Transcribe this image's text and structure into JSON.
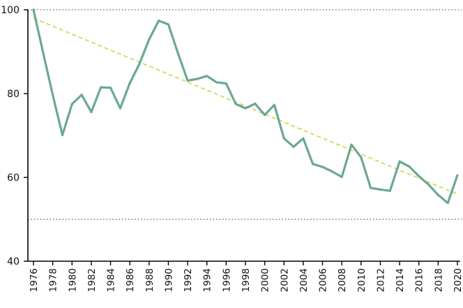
{
  "chart_data": {
    "type": "line",
    "title": "",
    "xlabel": "",
    "ylabel": "",
    "xlim": [
      1976,
      2020
    ],
    "ylim": [
      40,
      100
    ],
    "y_ticks": [
      40,
      60,
      80,
      100
    ],
    "x_ticks": [
      1976,
      1978,
      1980,
      1982,
      1984,
      1986,
      1988,
      1990,
      1992,
      1994,
      1996,
      1998,
      2000,
      2002,
      2004,
      2006,
      2008,
      2010,
      2012,
      2014,
      2016,
      2018,
      2020
    ],
    "x_tick_labels": [
      "1976",
      "1978",
      "1980",
      "1982",
      "1984",
      "1986",
      "1988",
      "1990",
      "1992",
      "1994",
      "1996",
      "1998",
      "2000",
      "2002",
      "2004",
      "2006",
      "2008",
      "2010",
      "2012",
      "2014",
      "2016",
      "2018",
      "2020"
    ],
    "y_tick_labels": [
      "40",
      "60",
      "80",
      "100"
    ],
    "grid": false,
    "series": [
      {
        "color": "#6aa892",
        "x": [
          1976,
          1977,
          1978,
          1979,
          1980,
          1981,
          1982,
          1983,
          1984,
          1985,
          1986,
          1987,
          1988,
          1989,
          1990,
          1991,
          1992,
          1993,
          1994,
          1995,
          1996,
          1997,
          1998,
          1999,
          2000,
          2001,
          2002,
          2003,
          2004,
          2005,
          2006,
          2007,
          2008,
          2009,
          2010,
          2011,
          2012,
          2013,
          2014,
          2015,
          2016,
          2017,
          2018,
          2019,
          2020
        ],
        "values": [
          100,
          89.8,
          79.7,
          70.1,
          77.5,
          79.7,
          75.6,
          81.5,
          81.4,
          76.5,
          82.5,
          87.1,
          92.9,
          97.4,
          96.5,
          89.6,
          83.1,
          83.5,
          84.2,
          82.7,
          82.4,
          77.5,
          76.5,
          77.6,
          74.9,
          77.3,
          69.3,
          67.3,
          69.3,
          63.2,
          62.5,
          61.4,
          60.1,
          67.8,
          64.8,
          57.5,
          57.1,
          56.8,
          63.8,
          62.6,
          60.3,
          58.3,
          55.8,
          53.9,
          60.5
        ]
      },
      {
        "type": "trend",
        "color": "#c6d84a",
        "x": [
          1976,
          2020
        ],
        "values": [
          98,
          56
        ]
      }
    ],
    "reference_lines": [
      {
        "y": 100,
        "color": "#2e6b5a",
        "style": "dotted"
      },
      {
        "y": 50,
        "color": "#2e6b5a",
        "style": "dotted"
      }
    ]
  }
}
